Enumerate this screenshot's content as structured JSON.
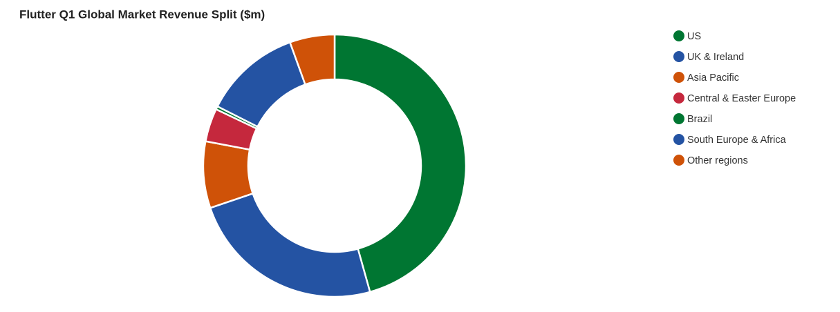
{
  "chart_data": {
    "type": "donut",
    "title": "Flutter Q1 Global Market Revenue Split ($m)",
    "categories": [
      "US",
      "UK & Ireland",
      "Asia Pacific",
      "Central & Easter Europe",
      "Brazil",
      "South Europe & Africa",
      "Other regions"
    ],
    "values": [
      1414,
      747,
      254,
      127,
      12,
      372,
      171
    ],
    "colors": [
      "#007632",
      "#2453a3",
      "#cf5208",
      "#c5283d",
      "#007632",
      "#2453a3",
      "#cf5208"
    ],
    "legend": "right"
  }
}
